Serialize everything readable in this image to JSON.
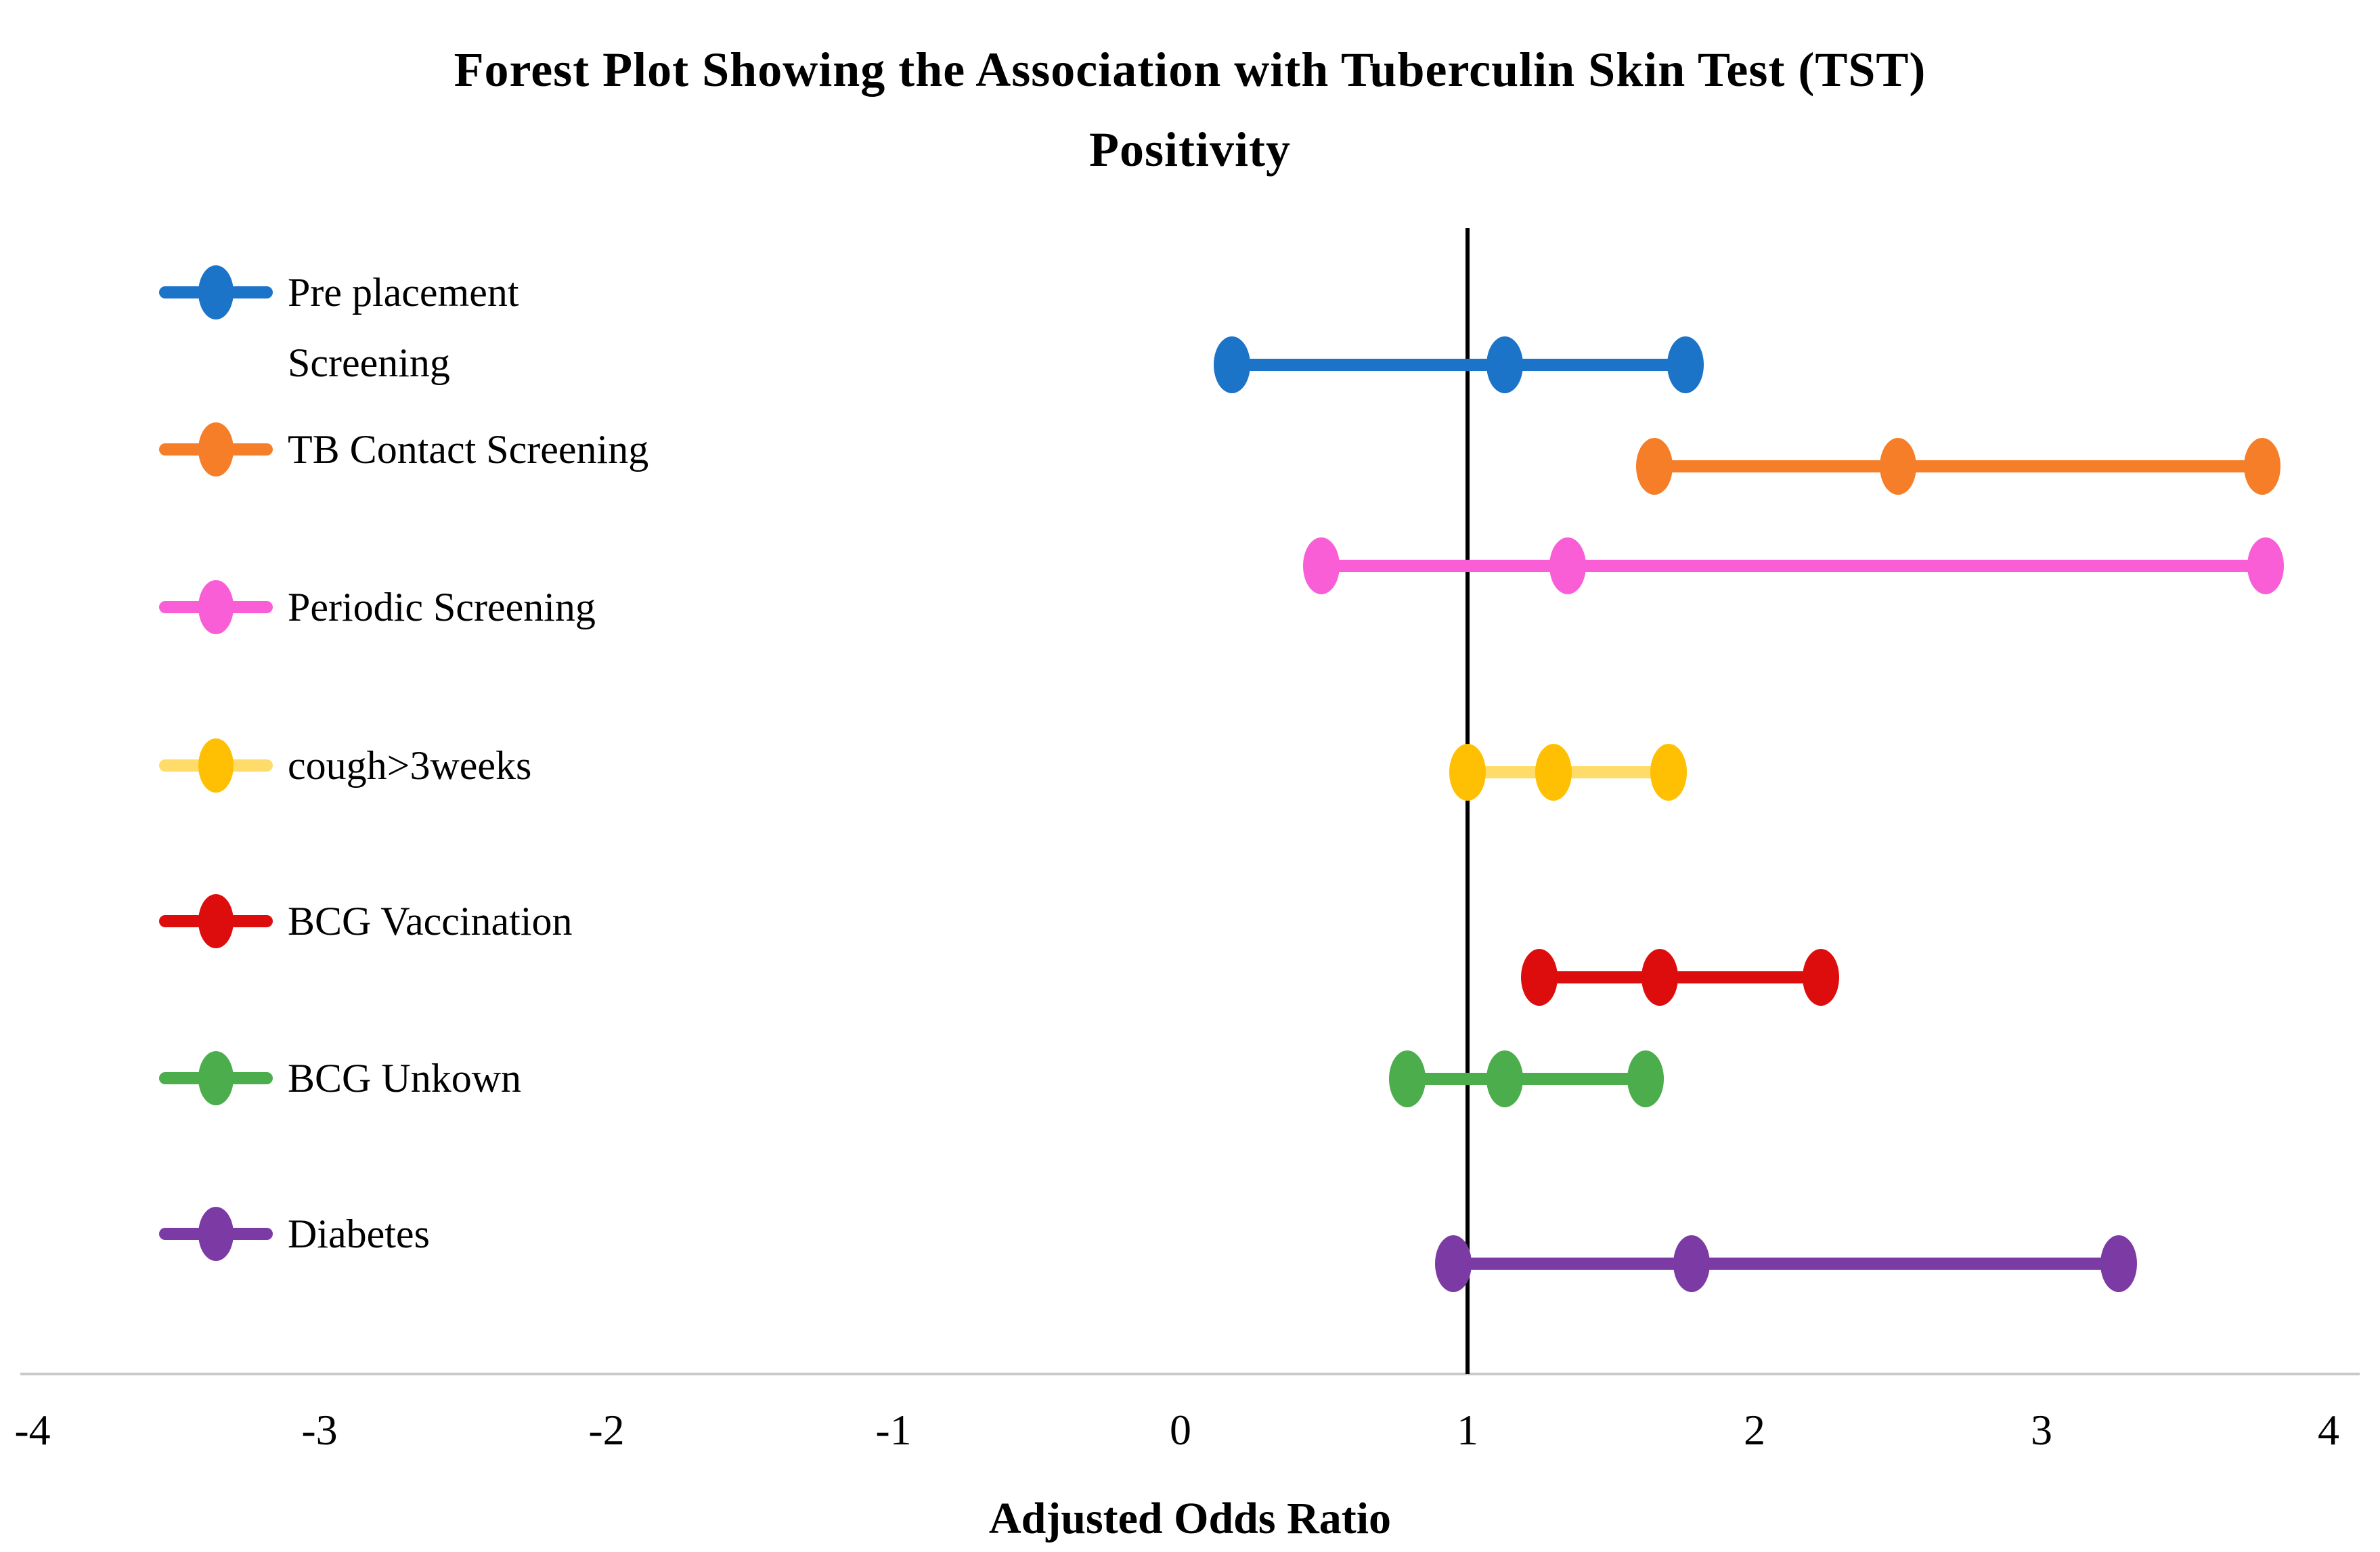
{
  "chart_data": {
    "type": "scatter",
    "subtype": "forest-plot",
    "title": "Forest Plot Showing the Association with Tuberculin Skin Test (TST)\nPositivity",
    "xlabel": "Adjusted Odds Ratio",
    "xlim": [
      -4,
      4
    ],
    "xticks": [
      "-4",
      "-3",
      "-2",
      "-1",
      "0",
      "1",
      "2",
      "3",
      "4"
    ],
    "grid": false,
    "legend_position": "left-labels",
    "reference_line_x": 1,
    "colors": {
      "reference_line": "#000000",
      "axis_line": "#c9c9c9",
      "text": "#000000"
    },
    "series": [
      {
        "name": "Pre placement\nScreening",
        "color": "#1c74c9",
        "or": 1.13,
        "ci_low": 0.18,
        "ci_high": 1.76
      },
      {
        "name": "TB Contact Screening",
        "color": "#f67e28",
        "or": 2.5,
        "ci_low": 1.65,
        "ci_high": 3.77
      },
      {
        "name": "Periodic Screening",
        "color": "#fa5ed6",
        "or": 1.35,
        "ci_low": 0.49,
        "ci_high": 3.78
      },
      {
        "name": "cough>3weeks",
        "color": "#ffc003",
        "line_color": "#ffdb69",
        "or": 1.3,
        "ci_low": 1.0,
        "ci_high": 1.7
      },
      {
        "name": "BCG Vaccination",
        "color": "#de0d0d",
        "or": 1.67,
        "ci_low": 1.25,
        "ci_high": 2.23
      },
      {
        "name": "BCG Unkown",
        "color": "#4bad4b",
        "or": 1.13,
        "ci_low": 0.79,
        "ci_high": 1.62
      },
      {
        "name": "Diabetes",
        "color": "#7c3aa4",
        "or": 1.78,
        "ci_low": 0.95,
        "ci_high": 3.27
      }
    ]
  }
}
